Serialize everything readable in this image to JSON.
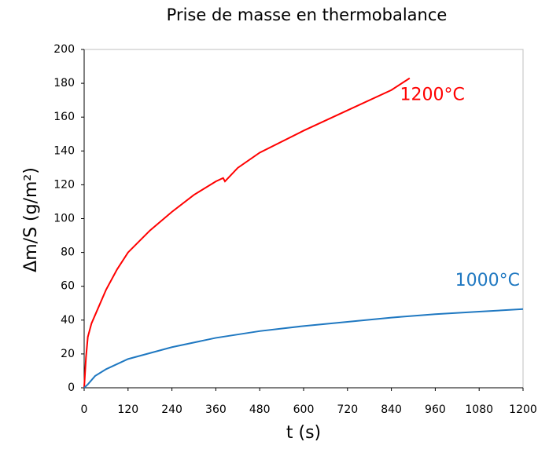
{
  "chart_data": {
    "type": "line",
    "title": "Prise de masse en thermobalance",
    "xlabel": "t (s)",
    "ylabel": "Δm/S (g/m²)",
    "xlim": [
      0,
      1200
    ],
    "xticks": [
      0,
      120,
      240,
      360,
      480,
      600,
      720,
      840,
      960,
      1080,
      1200
    ],
    "ylim": [
      0,
      200
    ],
    "yticks": [
      0,
      20,
      40,
      60,
      80,
      100,
      120,
      140,
      160,
      180,
      200
    ],
    "grid": false,
    "series": [
      {
        "name": "1200°C",
        "color": "#ff0000",
        "x": [
          0,
          5,
          10,
          20,
          40,
          60,
          90,
          120,
          180,
          240,
          300,
          360,
          380,
          385,
          420,
          480,
          600,
          720,
          840,
          890
        ],
        "values": [
          0,
          18,
          30,
          38,
          48,
          58,
          70,
          80,
          93,
          104,
          114,
          122,
          124,
          122,
          130,
          139,
          152,
          164,
          176,
          183
        ]
      },
      {
        "name": "1000°C",
        "color": "#1f78c1",
        "x": [
          0,
          10,
          30,
          60,
          120,
          240,
          360,
          480,
          600,
          720,
          840,
          960,
          1080,
          1200
        ],
        "values": [
          0,
          2,
          7,
          11,
          17,
          24,
          29.5,
          33.5,
          36.5,
          39,
          41.5,
          43.5,
          45,
          46.5
        ]
      }
    ]
  }
}
